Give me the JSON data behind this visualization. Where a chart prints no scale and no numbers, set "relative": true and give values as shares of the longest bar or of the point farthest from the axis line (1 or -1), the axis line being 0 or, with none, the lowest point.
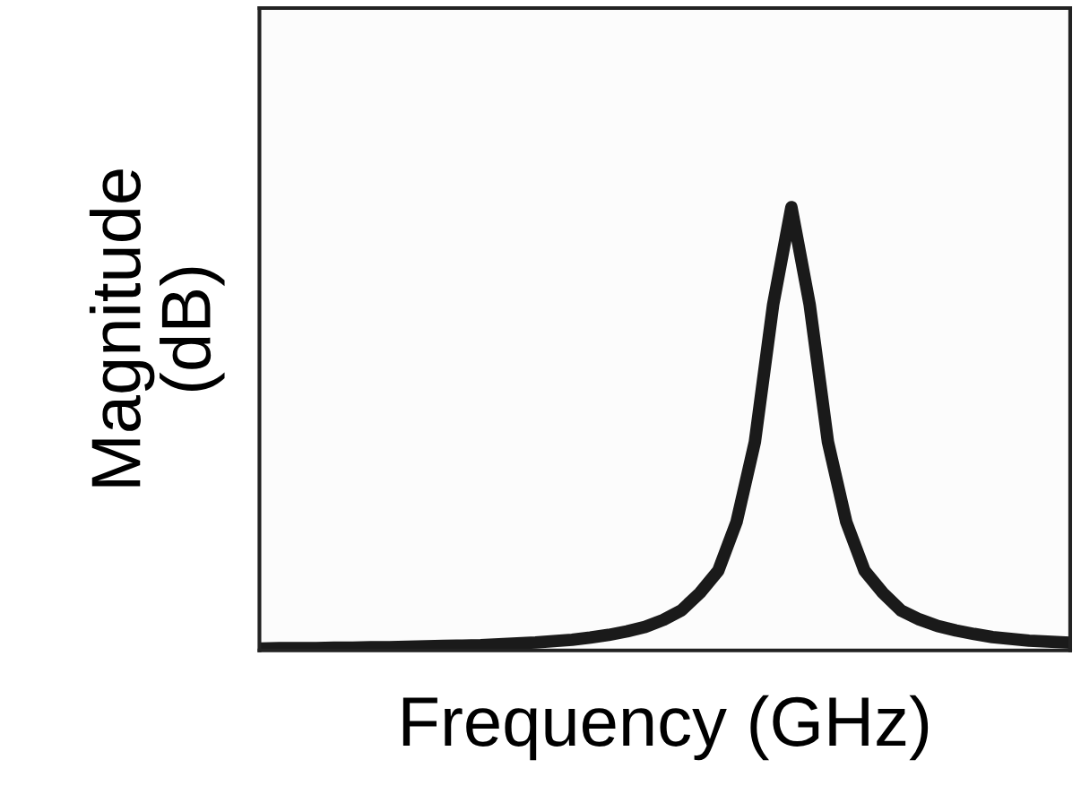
{
  "chart_data": {
    "type": "line",
    "relative": true,
    "xlabel": "Frequency (GHz)",
    "ylabel": "Magnitude\n(dB)",
    "color": "#1a1a1a",
    "marker": "none",
    "line_style": "solid",
    "categories": [
      null,
      null,
      null,
      null,
      null,
      null,
      null,
      null,
      null,
      null,
      null,
      null,
      null,
      null,
      null,
      null,
      null,
      null,
      null,
      null,
      null,
      null,
      null,
      null,
      null,
      null,
      null,
      null,
      null,
      null,
      null,
      null,
      null,
      null,
      null,
      null,
      null,
      null,
      null,
      null,
      null,
      null,
      null,
      null,
      null
    ],
    "values": [
      0.004,
      0.005,
      0.005,
      0.005,
      0.006,
      0.006,
      0.007,
      0.007,
      0.008,
      0.009,
      0.01,
      0.011,
      0.012,
      0.014,
      0.016,
      0.018,
      0.021,
      0.024,
      0.029,
      0.035,
      0.043,
      0.053,
      0.069,
      0.091,
      0.13,
      0.18,
      0.29,
      0.47,
      0.78,
      1,
      0.78,
      0.47,
      0.29,
      0.18,
      0.13,
      0.09,
      0.07,
      0.055,
      0.045,
      0.037,
      0.03,
      0.026,
      0.022,
      0.02,
      0.018
    ]
  }
}
